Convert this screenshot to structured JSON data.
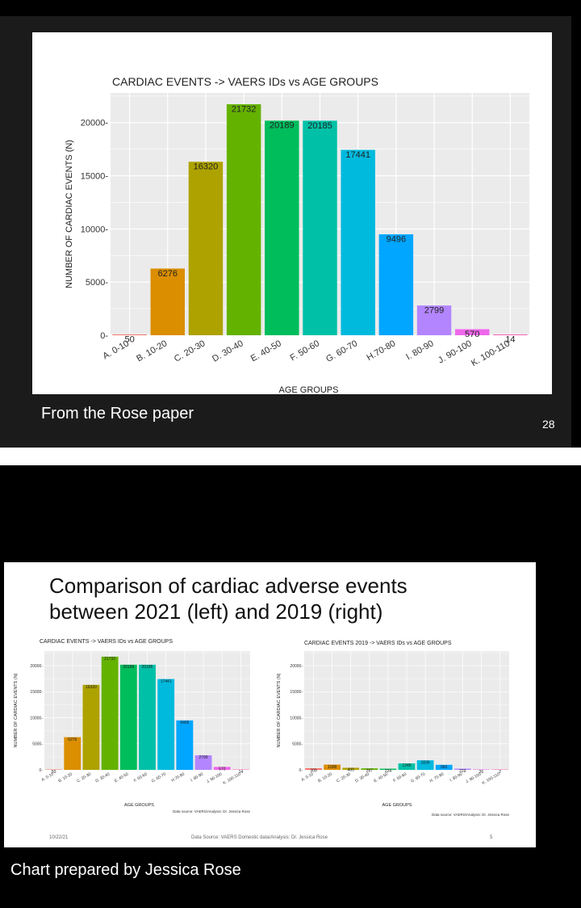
{
  "slide1": {
    "caption": "From the Rose paper",
    "page_number": "28"
  },
  "slide2": {
    "title_line1": "Comparison of cardiac adverse events",
    "title_line2": "between 2021 (left) and 2019 (right)",
    "footer_date": "10/22/21",
    "footer_source": "Data Source: VAERS Domestic data/Analysis: Dr. Jessica Rose",
    "footer_page": "5",
    "caption": "Chart prepared by Jessica Rose"
  },
  "colors": {
    "bars": [
      "#F8766D",
      "#DB8E00",
      "#AEA200",
      "#64B200",
      "#00BD5C",
      "#00C1A7",
      "#00BADE",
      "#00A6FF",
      "#B385FF",
      "#EF67EB",
      "#FF63B6"
    ],
    "panel_bg": "#EBEBEB",
    "grid": "#FFFFFF"
  },
  "chart_data": [
    {
      "type": "bar",
      "title": "CARDIAC EVENTS -> VAERS IDs vs AGE GROUPS",
      "xlabel": "AGE GROUPS",
      "ylabel": "NUMBER OF CARDIAC EVENTS (N)",
      "source": "Data source: VAERS/Analysis: Dr. Jessica Rose",
      "categories": [
        "A. 0-10",
        "B. 10-20",
        "C. 20-30",
        "D. 30-40",
        "E. 40-50",
        "F. 50-60",
        "G. 60-70",
        "H.70-80",
        "I. 80-90",
        "J. 90-100",
        "K. 100-110"
      ],
      "values": [
        50,
        6276,
        16320,
        21732,
        20189,
        20185,
        17441,
        9496,
        2799,
        570,
        14
      ],
      "labels": [
        "50",
        "6276",
        "16320",
        "21732",
        "20189",
        "20185",
        "17441",
        "9496",
        "2799",
        "570",
        "14"
      ],
      "ylim": [
        0,
        22800
      ],
      "yticks": [
        0,
        5000,
        10000,
        15000,
        20000
      ]
    },
    {
      "type": "bar",
      "title": "CARDIAC EVENTS -> VAERS IDs vs AGE GROUPS",
      "xlabel": "AGE GROUPS",
      "ylabel": "NUMBER OF CARDIAC EVENTS (N)",
      "source": "Data source: VAERS/Analysis: Dr. Jessica Rose",
      "categories": [
        "A. 0-10",
        "B. 10-20",
        "C. 20-30",
        "D. 30-40",
        "E. 40-50",
        "F. 50-60",
        "G. 60-70",
        "H.70-80",
        "I. 80-90",
        "J. 90-100",
        "K. 100-110"
      ],
      "values": [
        50,
        6276,
        16320,
        21732,
        20189,
        20185,
        17441,
        9496,
        2799,
        570,
        14
      ],
      "labels": [
        "50",
        "6276",
        "16320",
        "21732",
        "20189",
        "20185",
        "17441",
        "9496",
        "2799",
        "570",
        "14"
      ],
      "ylim": [
        0,
        22800
      ],
      "yticks": [
        0,
        5000,
        10000,
        15000,
        20000
      ]
    },
    {
      "type": "bar",
      "title": "CARDIAC EVENTS 2019 -> VAERS IDs vs AGE GROUPS",
      "xlabel": "AGE GROUPS",
      "ylabel": "NUMBER OF CARDIAC EVENTS (N)",
      "source": "Data source: VAERS/Analysis: Dr. Jessica Rose",
      "categories": [
        "A. 0-10",
        "B. 10-20",
        "C. 20-30",
        "D. 30-40",
        "E. 40-50",
        "F. 50-60",
        "G. 60-70",
        "H. 70-80",
        "I. 80-90",
        "J. 90-100",
        "K. 100-110"
      ],
      "values": [
        309,
        1008,
        400,
        287,
        224,
        1245,
        1836,
        966,
        229,
        26,
        2
      ],
      "labels": [
        "309",
        "1008",
        "400",
        "287",
        "224",
        "1245",
        "1836",
        "966",
        "229",
        "26",
        "2"
      ],
      "ylim": [
        0,
        22800
      ],
      "yticks": [
        0,
        5000,
        10000,
        15000,
        20000
      ]
    }
  ]
}
